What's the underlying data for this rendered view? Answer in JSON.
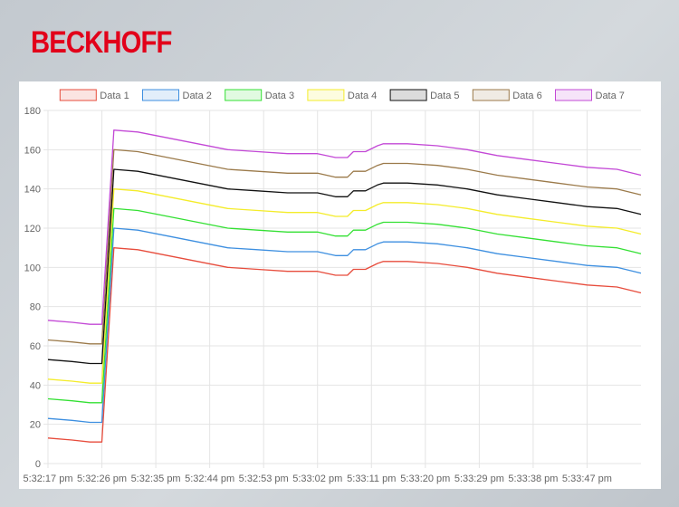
{
  "brand": {
    "name": "BECKHOFF",
    "color": "#e2001a"
  },
  "chart_data": {
    "type": "line",
    "title": "",
    "xlabel": "",
    "ylabel": "",
    "ylim": [
      0,
      180
    ],
    "yticks": [
      0,
      20,
      40,
      60,
      80,
      100,
      120,
      140,
      160,
      180
    ],
    "grid": true,
    "legend_position": "top",
    "x_tick_labels": [
      "5:32:17 pm",
      "5:32:26 pm",
      "5:32:35 pm",
      "5:32:44 pm",
      "5:32:53 pm",
      "5:33:02 pm",
      "5:33:11 pm",
      "5:33:20 pm",
      "5:33:29 pm",
      "5:33:38 pm",
      "5:33:47 pm"
    ],
    "x_seconds_range": [
      0,
      99
    ],
    "x_labels_every_seconds": 9,
    "base_curve": {
      "x": [
        0,
        4,
        7,
        9,
        11,
        15,
        20,
        25,
        30,
        35,
        40,
        45,
        48,
        50,
        51,
        53,
        55,
        56,
        58,
        60,
        65,
        70,
        75,
        80,
        85,
        90,
        95,
        99
      ],
      "y": [
        13,
        12,
        11,
        11,
        110,
        109,
        106,
        103,
        100,
        99,
        98,
        98,
        96,
        96,
        99,
        99,
        102,
        103,
        103,
        103,
        102,
        100,
        97,
        95,
        93,
        91,
        90,
        87
      ]
    },
    "series": [
      {
        "name": "Data 1",
        "color": "#e74c3c",
        "offset": 0
      },
      {
        "name": "Data 2",
        "color": "#3d8fe0",
        "offset": 10
      },
      {
        "name": "Data 3",
        "color": "#33e033",
        "offset": 20
      },
      {
        "name": "Data 4",
        "color": "#f4ec2a",
        "offset": 30
      },
      {
        "name": "Data 5",
        "color": "#111111",
        "offset": 40
      },
      {
        "name": "Data 6",
        "color": "#9b7a4a",
        "offset": 50
      },
      {
        "name": "Data 7",
        "color": "#c348d6",
        "offset": 60
      }
    ]
  }
}
